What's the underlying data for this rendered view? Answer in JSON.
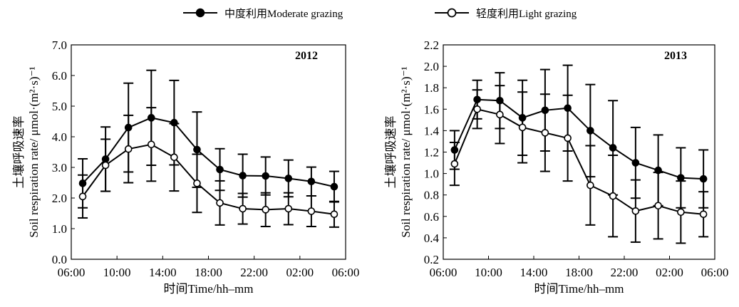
{
  "legend": {
    "series": [
      {
        "name": "中度利用Moderate grazing",
        "marker": "filled"
      },
      {
        "name": "轻度利用Light grazing",
        "marker": "open"
      }
    ]
  },
  "chart_data": [
    {
      "type": "line",
      "title": "2012",
      "xlabel": "时间Time/hh–mm",
      "ylabel_zh": "土壤呼吸速率",
      "ylabel_en": "Soil respiration rate/ μmol·(m²·s)⁻¹",
      "x_ticks": [
        "06:00",
        "10:00",
        "14:00",
        "18:00",
        "22:00",
        "02:00",
        "06:00"
      ],
      "x": [
        "07:00",
        "09:00",
        "11:00",
        "13:00",
        "15:00",
        "17:00",
        "19:00",
        "21:00",
        "23:00",
        "01:00",
        "03:00",
        "05:00"
      ],
      "ylim": [
        0.0,
        7.0
      ],
      "y_ticks": [
        "0.0",
        "1.0",
        "2.0",
        "3.0",
        "4.0",
        "5.0",
        "6.0",
        "7.0"
      ],
      "series": [
        {
          "name": "中度利用Moderate grazing",
          "marker": "filled",
          "values": [
            2.48,
            3.27,
            4.3,
            4.62,
            4.46,
            3.58,
            2.93,
            2.73,
            2.72,
            2.64,
            2.54,
            2.37
          ],
          "errors": [
            0.8,
            1.05,
            1.45,
            1.55,
            1.38,
            1.23,
            0.68,
            0.7,
            0.62,
            0.6,
            0.47,
            0.5
          ]
        },
        {
          "name": "轻度利用Light grazing",
          "marker": "open",
          "values": [
            2.05,
            3.07,
            3.6,
            3.75,
            3.33,
            2.48,
            1.84,
            1.65,
            1.62,
            1.65,
            1.57,
            1.47
          ],
          "errors": [
            0.7,
            0.85,
            1.1,
            1.2,
            1.1,
            0.95,
            0.72,
            0.5,
            0.55,
            0.52,
            0.5,
            0.42
          ]
        }
      ]
    },
    {
      "type": "line",
      "title": "2013",
      "xlabel": "时间Time/hh–mm",
      "ylabel_zh": "土壤呼吸速率",
      "ylabel_en": "Soil respiration rate/ μmol·(m²·s)⁻¹",
      "x_ticks": [
        "06:00",
        "10:00",
        "14:00",
        "18:00",
        "22:00",
        "02:00",
        "06:00"
      ],
      "x": [
        "07:00",
        "09:00",
        "11:00",
        "13:00",
        "15:00",
        "17:00",
        "19:00",
        "21:00",
        "23:00",
        "01:00",
        "03:00",
        "05:00"
      ],
      "ylim": [
        0.2,
        2.2
      ],
      "y_ticks": [
        "0.2",
        "0.4",
        "0.6",
        "0.8",
        "1.0",
        "1.2",
        "1.4",
        "1.6",
        "1.8",
        "2.0",
        "2.2"
      ],
      "series": [
        {
          "name": "中度利用Moderate grazing",
          "marker": "filled",
          "values": [
            1.22,
            1.69,
            1.68,
            1.52,
            1.59,
            1.61,
            1.4,
            1.24,
            1.1,
            1.03,
            0.96,
            0.95
          ],
          "errors": [
            0.18,
            0.18,
            0.26,
            0.35,
            0.38,
            0.4,
            0.43,
            0.44,
            0.33,
            0.33,
            0.28,
            0.27
          ]
        },
        {
          "name": "轻度利用Light grazing",
          "marker": "open",
          "values": [
            1.09,
            1.6,
            1.55,
            1.43,
            1.38,
            1.33,
            0.89,
            0.79,
            0.65,
            0.7,
            0.64,
            0.62
          ],
          "errors": [
            0.2,
            0.18,
            0.27,
            0.33,
            0.36,
            0.4,
            0.37,
            0.38,
            0.29,
            0.31,
            0.29,
            0.21
          ]
        }
      ]
    }
  ]
}
